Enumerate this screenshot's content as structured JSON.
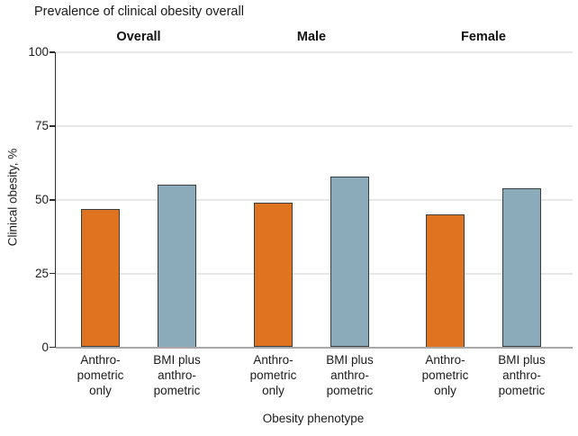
{
  "title": "Prevalence of clinical obesity overall",
  "colors": {
    "orange_bar": "#E0731F",
    "blue_bar": "#8CABBA",
    "bar_border": "#3A3F44",
    "gridline": "#E7E7E7",
    "y_axis": "#2E2E2E",
    "x_axis_baseline": "#A8A8A8",
    "text": "#1C1C1C"
  },
  "chart_data": {
    "type": "bar",
    "title": "Prevalence of clinical obesity overall",
    "xlabel": "Obesity phenotype",
    "ylabel": "Clinical obesity, %",
    "ylim": [
      0,
      100
    ],
    "yticks": [
      0,
      25,
      50,
      75,
      100
    ],
    "grid": true,
    "legend_position": "none",
    "groups": [
      "Overall",
      "Male",
      "Female"
    ],
    "bar_categories": [
      "Anthropometric only",
      "BMI plus anthropometric"
    ],
    "bar_category_label_lines": [
      [
        "Anthro-",
        "pometric",
        "only"
      ],
      [
        "BMI plus",
        "anthro-",
        "pometric"
      ]
    ],
    "series": [
      {
        "name": "Anthropometric only",
        "color": "#E0731F",
        "values": [
          47,
          49,
          45
        ]
      },
      {
        "name": "BMI plus anthropometric",
        "color": "#8CABBA",
        "values": [
          55,
          58,
          54
        ]
      }
    ]
  }
}
